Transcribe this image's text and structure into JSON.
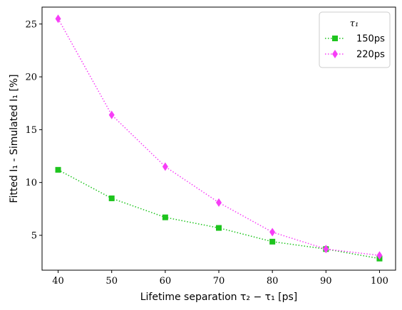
{
  "chart_data": {
    "type": "line",
    "x": [
      40,
      50,
      60,
      70,
      80,
      90,
      100
    ],
    "xlabel": "Lifetime separation τ₂ − τ₁ [ps]",
    "ylabel": "Fitted I₁ - Simulated I₁ [%]",
    "xlim": [
      37.0,
      103.0
    ],
    "ylim": [
      1.7,
      26.6
    ],
    "xticks": [
      40,
      50,
      60,
      70,
      80,
      90,
      100
    ],
    "yticks": [
      5,
      10,
      15,
      20,
      25
    ],
    "grid": false,
    "legend_title": "τ₁",
    "legend_position": "top-right",
    "series": [
      {
        "name": "150ps",
        "color": "#1ec41e",
        "marker": "square",
        "line_style": "dotted",
        "values": [
          11.2,
          8.5,
          6.7,
          5.7,
          4.4,
          3.7,
          2.8
        ]
      },
      {
        "name": "220ps",
        "color": "#f73ef7",
        "marker": "diamond",
        "line_style": "dotted",
        "values": [
          25.5,
          16.4,
          11.5,
          8.1,
          5.3,
          3.7,
          3.1
        ]
      }
    ]
  }
}
